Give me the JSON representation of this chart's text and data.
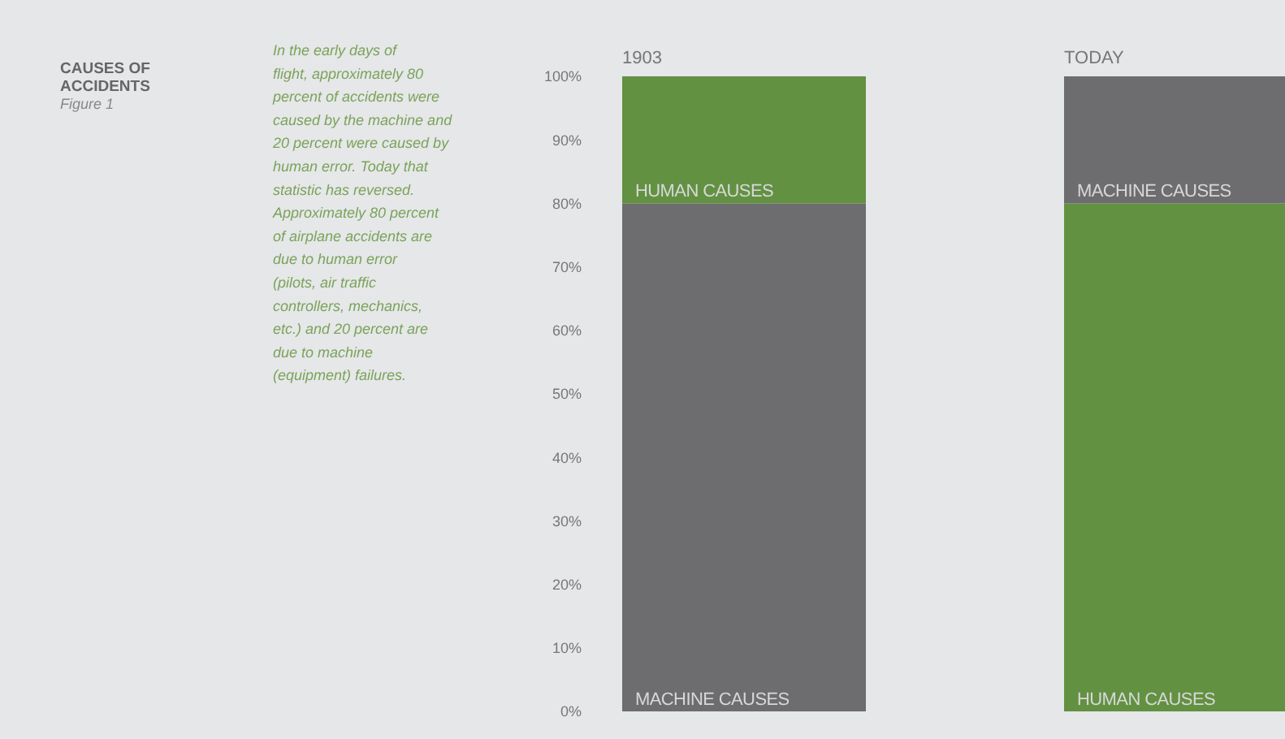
{
  "chart_data": {
    "type": "bar",
    "title": "CAUSES OF ACCIDENTS",
    "subtitle": "Figure 1",
    "categories": [
      "1903",
      "TODAY"
    ],
    "stacked": true,
    "grid": false,
    "series": [
      {
        "values": [
          80,
          80
        ],
        "colors": [
          "#6d6d6f",
          "#629142"
        ]
      },
      {
        "values": [
          20,
          20
        ],
        "colors": [
          "#629142",
          "#6d6d6f"
        ]
      }
    ],
    "ylim": [
      0,
      100
    ],
    "yticks": [
      {
        "value": 0,
        "label": "0%"
      },
      {
        "value": 10,
        "label": "10%"
      },
      {
        "value": 20,
        "label": "20%"
      },
      {
        "value": 30,
        "label": "30%"
      },
      {
        "value": 40,
        "label": "40%"
      },
      {
        "value": 50,
        "label": "50%"
      },
      {
        "value": 60,
        "label": "60%"
      },
      {
        "value": 70,
        "label": "70%"
      },
      {
        "value": 80,
        "label": "80%"
      },
      {
        "value": 90,
        "label": "90%"
      },
      {
        "value": 100,
        "label": "100%"
      }
    ],
    "annotations": [
      "In the early days of flight, approximately 80 percent of accidents were caused by the machine and 20 percent were caused by human error. Today that statistic has reversed. Approximately 80 percent of airplane accidents are due to human error (pilots, air traffic controllers, mechanics, etc.) and 20 percent are due to machine (equipment) failures.",
      "HUMAN CAUSES",
      "MACHINE CAUSES",
      "MACHINE CAUSES",
      "HUMAN CAUSES"
    ]
  }
}
